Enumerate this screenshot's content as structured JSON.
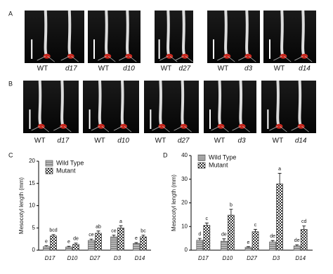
{
  "panels": {
    "A": {
      "letter": "A",
      "labels": [
        "WT",
        "d17",
        "WT",
        "d10",
        "WT",
        "d27",
        "WT",
        "d3",
        "WT",
        "d14"
      ]
    },
    "B": {
      "letter": "B",
      "labels": [
        "WT",
        "d17",
        "WT",
        "d10",
        "WT",
        "d27",
        "WT",
        "d3",
        "WT",
        "d14"
      ]
    }
  },
  "chart_data": [
    {
      "type": "bar",
      "panel": "C",
      "ylabel": "Mesocotyl length (mm)",
      "categories": [
        "D17",
        "D10",
        "D27",
        "D3",
        "D14"
      ],
      "ylim": [
        0,
        20
      ],
      "yticks": [
        0,
        5,
        10,
        15,
        20
      ],
      "legend": "upper left",
      "series": [
        {
          "name": "Wild Type",
          "color": "#555555",
          "pattern": "hatch",
          "values": [
            0.8,
            0.7,
            2.2,
            3.0,
            1.5
          ],
          "errors": [
            0.2,
            0.2,
            0.3,
            0.4,
            0.2
          ],
          "letters": [
            "e",
            "e",
            "ce",
            "ce",
            "e"
          ]
        },
        {
          "name": "Mutant",
          "color": "#333333",
          "pattern": "checker",
          "values": [
            3.2,
            1.3,
            3.8,
            5.0,
            3.0
          ],
          "errors": [
            0.3,
            0.3,
            0.5,
            0.5,
            0.4
          ],
          "letters": [
            "bcd",
            "de",
            "ab",
            "a",
            "bc"
          ]
        }
      ]
    },
    {
      "type": "bar",
      "panel": "D",
      "ylabel": "Mesocotyl length (mm)",
      "categories": [
        "D17",
        "D10",
        "D27",
        "D3",
        "D14"
      ],
      "ylim": [
        0,
        40
      ],
      "yticks": [
        0,
        10,
        20,
        30,
        40
      ],
      "legend": "upper left",
      "series": [
        {
          "name": "Wild Type",
          "color": "#555555",
          "pattern": "hatch",
          "values": [
            4.2,
            3.8,
            1.2,
            3.5,
            1.8
          ],
          "errors": [
            0.8,
            1.0,
            0.3,
            0.6,
            0.5
          ],
          "letters": [
            "d",
            "de",
            "e",
            "de",
            "de"
          ]
        },
        {
          "name": "Mutant",
          "color": "#333333",
          "pattern": "checker",
          "values": [
            10.5,
            14.8,
            7.8,
            28.0,
            8.8
          ],
          "errors": [
            1.0,
            2.5,
            1.0,
            4.5,
            1.5
          ],
          "letters": [
            "c",
            "b",
            "c",
            "a",
            "cd"
          ]
        }
      ]
    }
  ]
}
